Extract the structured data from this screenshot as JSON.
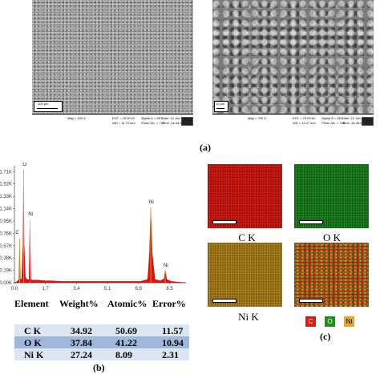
{
  "figure": {
    "labels": {
      "a": "(a)",
      "b": "(b)",
      "c": "(c)"
    }
  },
  "sem_left": {
    "scale_label": "100 µm",
    "mag": "Mag = 150 X",
    "eht": "EHT = 25.00 kV",
    "wd": "WD = 11.73 mm",
    "signal": "Signal A = SE1",
    "photo": "Photo No. = 747",
    "date": "Date :12 Jan 2023",
    "time": "Time :14:44:16"
  },
  "sem_right": {
    "scale_label": "10 µm",
    "mag": "Mag = 700 X",
    "eht": "EHT = 25.00 kV",
    "wd": "WD = 11.67 mm",
    "signal": "Signal A = SE1",
    "photo": "Photo No. = 748",
    "date": "Date :12 Jan 2023",
    "time": "Time :14:46:57"
  },
  "chart_data": {
    "type": "line",
    "title": "",
    "xlabel": "",
    "ylabel": "",
    "x_ticks": [
      "0.0",
      "1.7",
      "3.4",
      "5.1",
      "6.8",
      "8.5"
    ],
    "y_ticks": [
      "0.00K",
      "0.19K",
      "0.38K",
      "0.57K",
      "0.76K",
      "0.95K",
      "1.14K",
      "1.33K",
      "1.52K",
      "1.71K"
    ],
    "xlim": [
      0.0,
      9.4
    ],
    "ylim": [
      0.0,
      1.8
    ],
    "series": [
      {
        "x": [
          0.0,
          0.15,
          0.25,
          0.28,
          0.32,
          0.4,
          0.47,
          0.5,
          0.53,
          0.6,
          0.7,
          0.8,
          0.85,
          0.9,
          1.0,
          1.3,
          1.7,
          2.0,
          2.5,
          3.0,
          3.5,
          4.0,
          4.5,
          5.0,
          5.5,
          6.0,
          6.6,
          6.9,
          7.3,
          7.4,
          7.47,
          7.55,
          7.7,
          8.0,
          8.2,
          8.26,
          8.35,
          8.6,
          9.0,
          9.4
        ],
        "y": [
          0.0,
          0.02,
          0.05,
          0.68,
          0.06,
          0.05,
          0.6,
          1.74,
          0.6,
          0.08,
          0.05,
          0.05,
          0.96,
          0.05,
          0.04,
          0.04,
          0.03,
          0.03,
          0.02,
          0.02,
          0.02,
          0.02,
          0.02,
          0.02,
          0.02,
          0.02,
          0.02,
          0.02,
          0.05,
          0.45,
          1.16,
          0.45,
          0.05,
          0.03,
          0.06,
          0.2,
          0.05,
          0.02,
          0.01,
          0.0
        ]
      }
    ],
    "peaks": [
      {
        "label": "C",
        "x": 0.28,
        "y": 0.68
      },
      {
        "label": "O",
        "x": 0.5,
        "y": 1.74
      },
      {
        "label": "Ni",
        "x": 0.85,
        "y": 0.96
      },
      {
        "label": "Ni",
        "x": 7.47,
        "y": 1.16
      },
      {
        "label": "Ni",
        "x": 8.26,
        "y": 0.2
      }
    ],
    "fill_color": "#e01010"
  },
  "eds_table": {
    "headers": [
      "Element",
      "Weight%",
      "Atomic%",
      "Error%"
    ],
    "rows": [
      {
        "element": "C K",
        "weight": "34.92",
        "atomic": "50.69",
        "error": "11.57",
        "bg": "#dce6f2"
      },
      {
        "element": "O K",
        "weight": "37.84",
        "atomic": "41.22",
        "error": "10.94",
        "bg": "#9fb8d9"
      },
      {
        "element": "Ni K",
        "weight": "27.24",
        "atomic": "8.09",
        "error": "2.31",
        "bg": "#dce6f2"
      }
    ]
  },
  "maps": {
    "ck": "C K",
    "ok": "O K",
    "nik": "Ni K",
    "legend": [
      {
        "text": "C",
        "color": "#e01a10"
      },
      {
        "text": "O",
        "color": "#1f8f1f"
      },
      {
        "text": "Ni",
        "color": "#e8a81e"
      }
    ]
  }
}
